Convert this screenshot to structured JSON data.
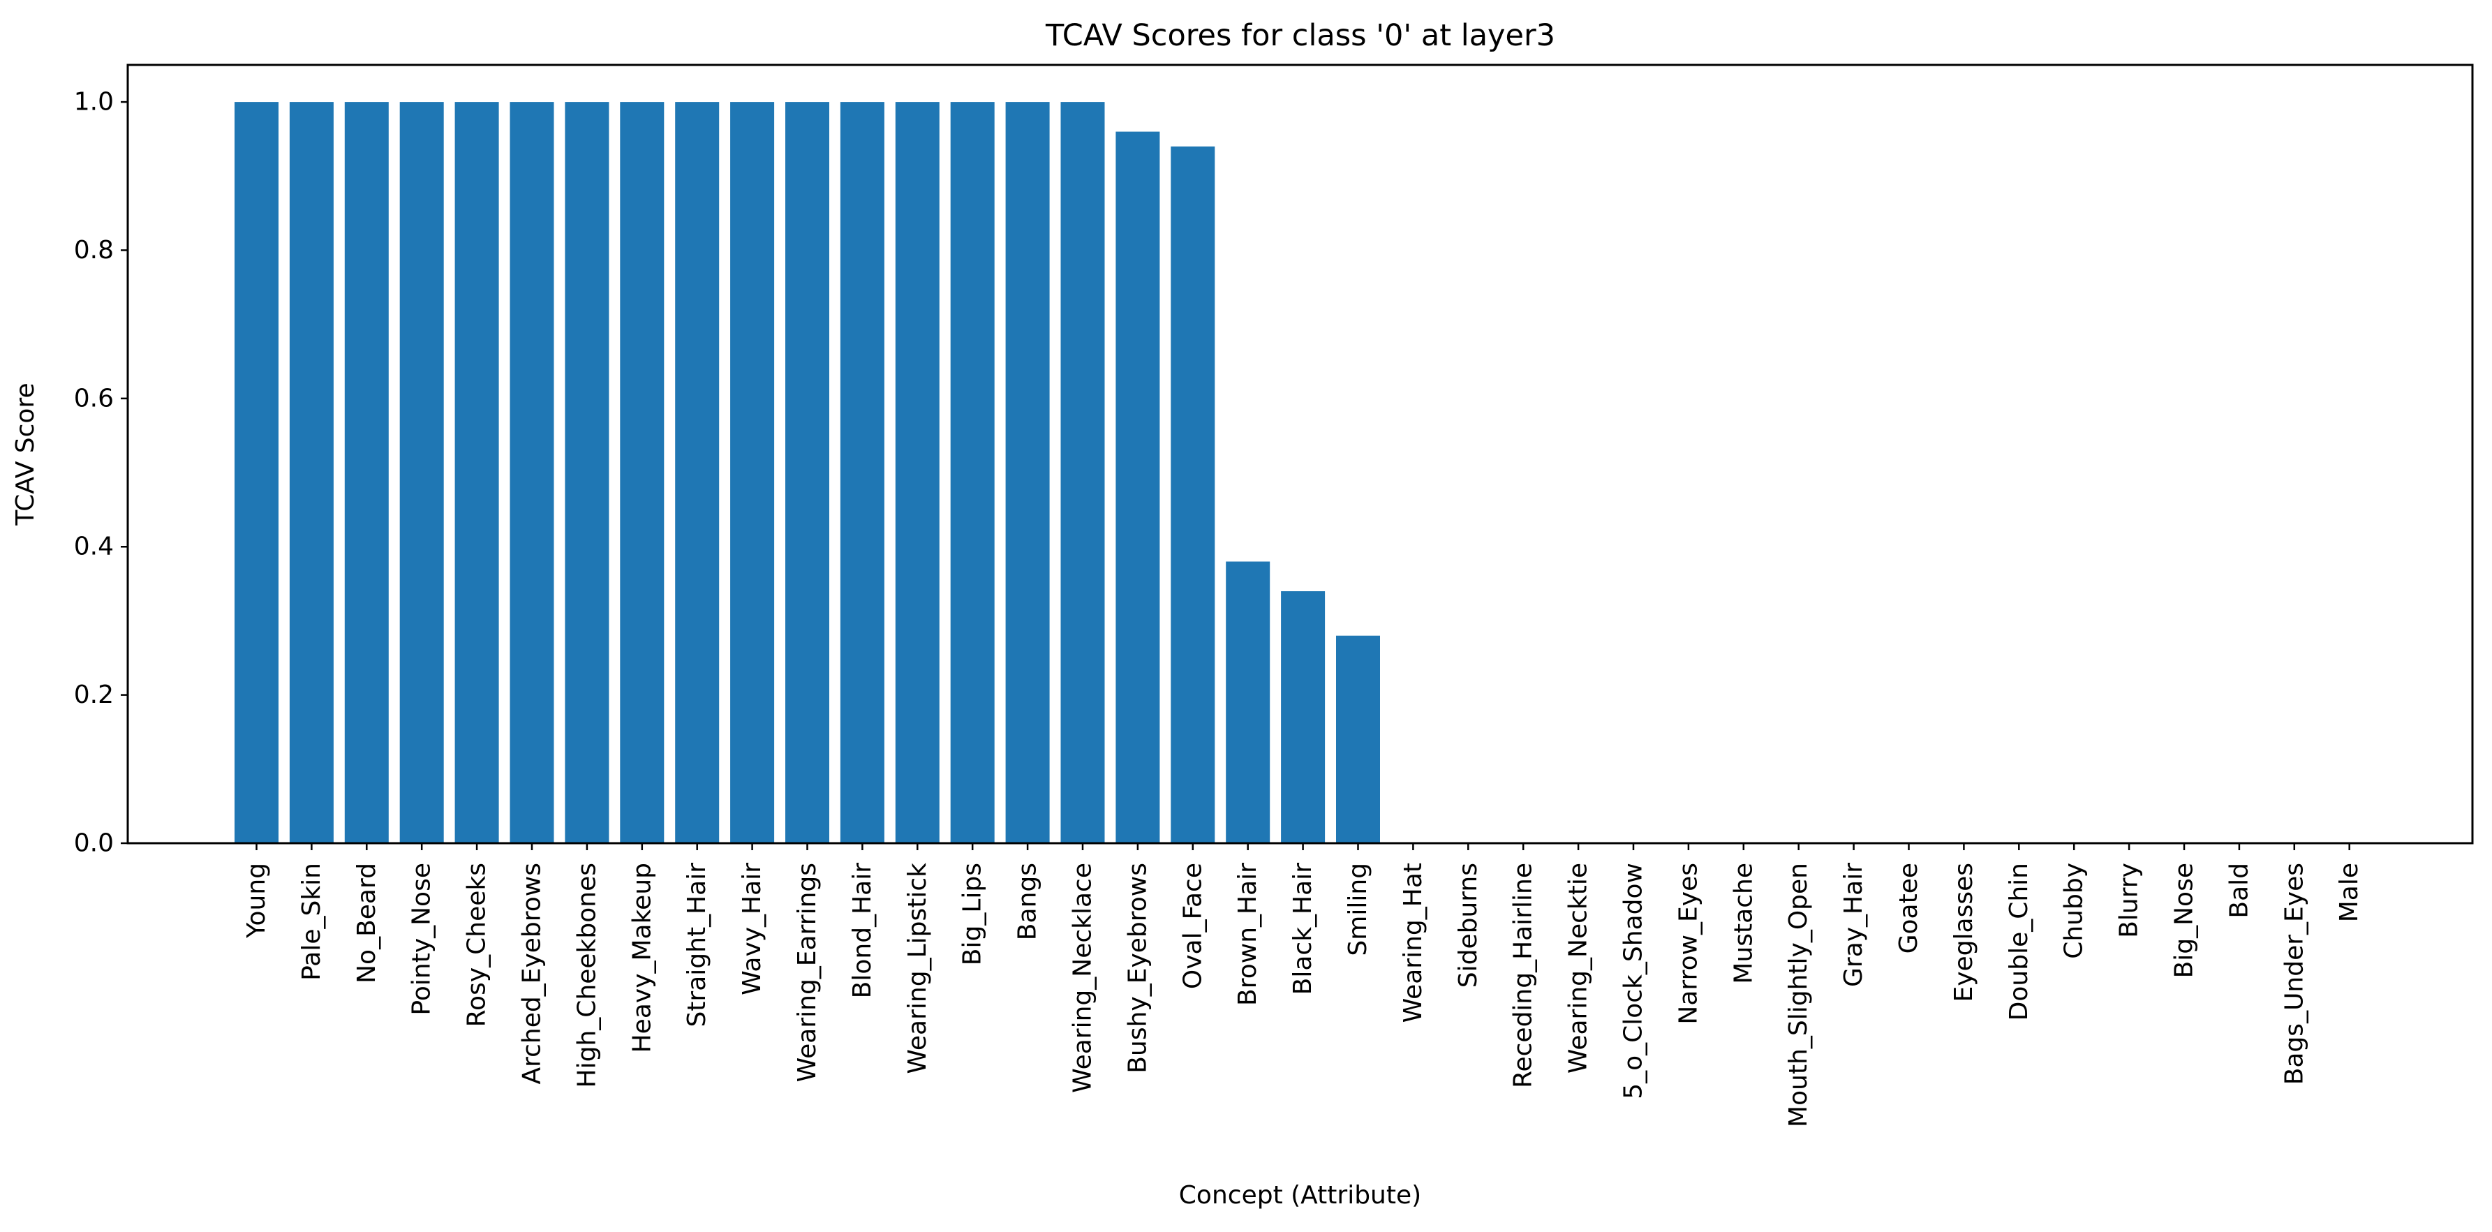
{
  "chart_data": {
    "type": "bar",
    "title": "TCAV Scores for class '0' at layer3",
    "xlabel": "Concept (Attribute)",
    "ylabel": "TCAV Score",
    "ylim": [
      0,
      1.05
    ],
    "yticks": [
      "0.0",
      "0.2",
      "0.4",
      "0.6",
      "0.8",
      "1.0"
    ],
    "grid": false,
    "bar_color": "#1f77b4",
    "categories": [
      "Young",
      "Pale_Skin",
      "No_Beard",
      "Pointy_Nose",
      "Rosy_Cheeks",
      "Arched_Eyebrows",
      "High_Cheekbones",
      "Heavy_Makeup",
      "Straight_Hair",
      "Wavy_Hair",
      "Wearing_Earrings",
      "Blond_Hair",
      "Wearing_Lipstick",
      "Big_Lips",
      "Bangs",
      "Wearing_Necklace",
      "Bushy_Eyebrows",
      "Oval_Face",
      "Brown_Hair",
      "Black_Hair",
      "Smiling",
      "Wearing_Hat",
      "Sideburns",
      "Receding_Hairline",
      "Wearing_Necktie",
      "5_o_Clock_Shadow",
      "Narrow_Eyes",
      "Mustache",
      "Mouth_Slightly_Open",
      "Gray_Hair",
      "Goatee",
      "Eyeglasses",
      "Double_Chin",
      "Chubby",
      "Blurry",
      "Big_Nose",
      "Bald",
      "Bags_Under_Eyes",
      "Male"
    ],
    "values": [
      1.0,
      1.0,
      1.0,
      1.0,
      1.0,
      1.0,
      1.0,
      1.0,
      1.0,
      1.0,
      1.0,
      1.0,
      1.0,
      1.0,
      1.0,
      1.0,
      0.96,
      0.94,
      0.38,
      0.34,
      0.28,
      0,
      0,
      0,
      0,
      0,
      0,
      0,
      0,
      0,
      0,
      0,
      0,
      0,
      0,
      0,
      0,
      0,
      0
    ]
  }
}
